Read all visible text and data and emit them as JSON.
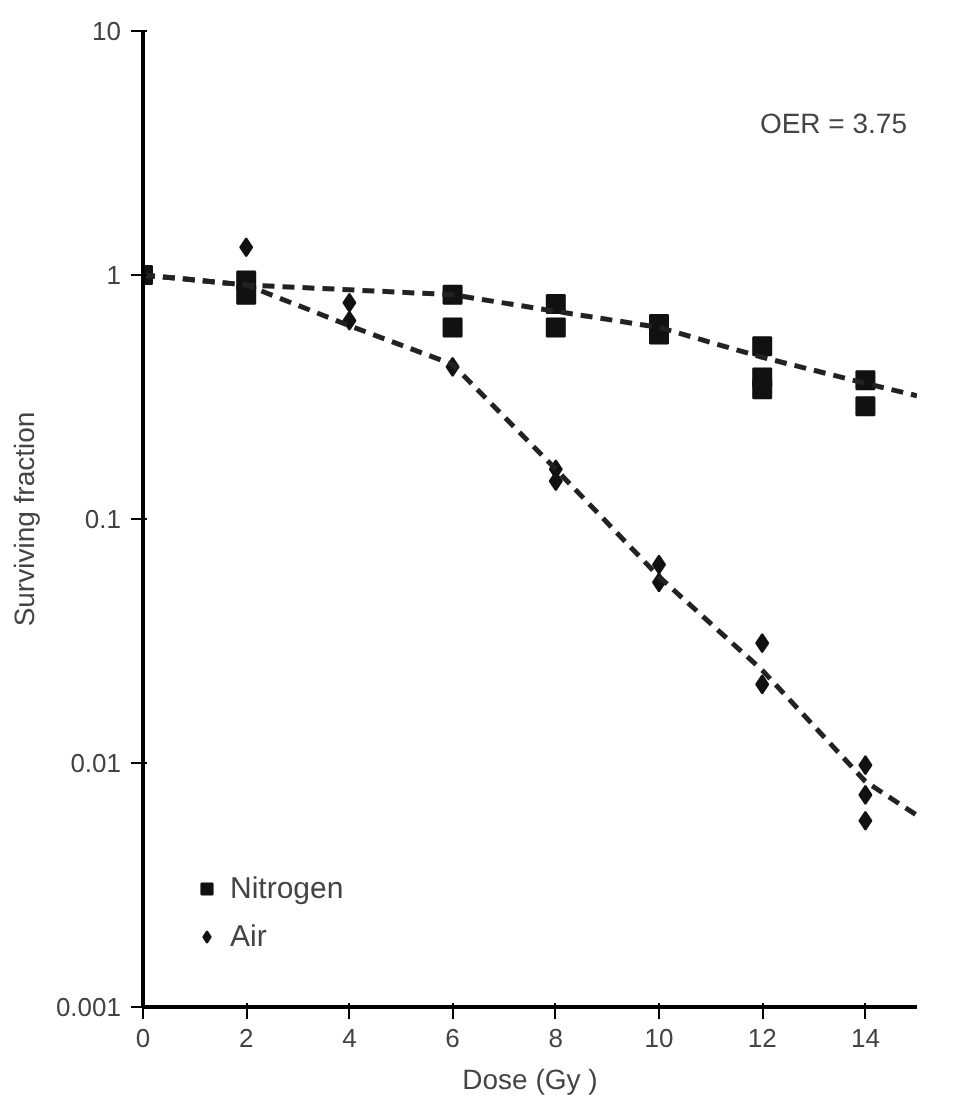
{
  "chart_data": {
    "type": "scatter",
    "xlabel": "Dose (Gy )",
    "ylabel": "Surviving fraction",
    "log": "y",
    "xlim": [
      0,
      15
    ],
    "ylim": [
      0.001,
      10
    ],
    "xticks": [
      0,
      2,
      4,
      6,
      8,
      10,
      12,
      14
    ],
    "yticks": [
      {
        "value": 0.001,
        "label": "0.001"
      },
      {
        "value": 0.01,
        "label": "0.01"
      },
      {
        "value": 0.1,
        "label": "0.1"
      },
      {
        "value": 1,
        "label": "1"
      },
      {
        "value": 10,
        "label": "10"
      }
    ],
    "grid": false,
    "legend": "bottom left",
    "annotations": [
      "OER = 3.75"
    ],
    "series": [
      {
        "name": "Nitrogen",
        "color": "#111111",
        "marker": "square",
        "x": [
          0,
          2,
          2,
          6,
          6,
          8,
          8,
          10,
          10,
          12,
          12,
          12,
          14,
          14
        ],
        "values": [
          1.0,
          0.95,
          0.83,
          0.83,
          0.61,
          0.76,
          0.61,
          0.63,
          0.57,
          0.51,
          0.38,
          0.34,
          0.37,
          0.29
        ]
      },
      {
        "name": "Air",
        "color": "#111111",
        "marker": "diamond",
        "x": [
          2,
          4,
          4,
          6,
          8,
          8,
          10,
          10,
          12,
          12,
          14,
          14,
          14
        ],
        "values": [
          1.3,
          0.77,
          0.65,
          0.42,
          0.16,
          0.143,
          0.065,
          0.055,
          0.031,
          0.021,
          0.0098,
          0.0074,
          0.0058
        ]
      },
      {
        "type": "line",
        "color": "#222222",
        "line_style": "dashed",
        "marker": "none",
        "x": [
          0,
          2,
          4,
          6,
          8,
          10,
          12,
          14,
          15
        ],
        "values": [
          1.0,
          0.91,
          0.87,
          0.83,
          0.71,
          0.61,
          0.46,
          0.36,
          0.32
        ]
      },
      {
        "type": "line",
        "color": "#222222",
        "line_style": "dashed",
        "marker": "none",
        "x": [
          0,
          2,
          4,
          6,
          8,
          10,
          12,
          14,
          15
        ],
        "values": [
          1.0,
          0.91,
          0.62,
          0.43,
          0.16,
          0.058,
          0.024,
          0.0084,
          0.0061
        ]
      }
    ]
  }
}
